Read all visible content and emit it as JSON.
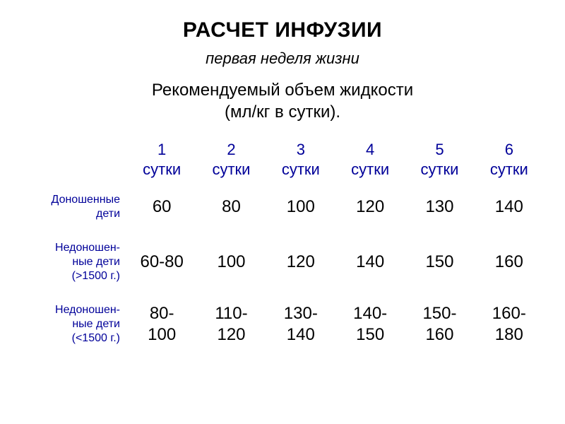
{
  "title": "РАСЧЕТ ИНФУЗИИ",
  "subtitle": "первая неделя жизни",
  "heading_line1": "Рекомендуемый объем жидкости",
  "heading_line2": "(мл/кг в сутки).",
  "table": {
    "type": "table",
    "header_color": "#000099",
    "rowlabel_color": "#000099",
    "value_color": "#000000",
    "background_color": "#ffffff",
    "header_fontsize": 22,
    "rowlabel_fontsize": 16,
    "value_fontsize": 24,
    "columns": [
      {
        "l1": "1",
        "l2": "сутки"
      },
      {
        "l1": "2",
        "l2": "сутки"
      },
      {
        "l1": "3",
        "l2": "сутки"
      },
      {
        "l1": "4",
        "l2": "сутки"
      },
      {
        "l1": "5",
        "l2": "сутки"
      },
      {
        "l1": "6",
        "l2": "сутки"
      }
    ],
    "rows": [
      {
        "label_l1": "Доношенные",
        "label_l2": "дети",
        "label_l3": "",
        "v": [
          "60",
          "80",
          "100",
          "120",
          "130",
          "140"
        ]
      },
      {
        "label_l1": "Недоношен-",
        "label_l2": "ные дети",
        "label_l3": "(>1500 г.)",
        "v": [
          "60-80",
          "100",
          "120",
          "140",
          "150",
          "160"
        ]
      },
      {
        "label_l1": "Недоношен-",
        "label_l2": "ные дети",
        "label_l3": "(<1500 г.)",
        "v": [
          "80-\n100",
          "110-\n120",
          "130-\n140",
          "140-\n150",
          "150-\n160",
          "160-\n180"
        ]
      }
    ]
  }
}
